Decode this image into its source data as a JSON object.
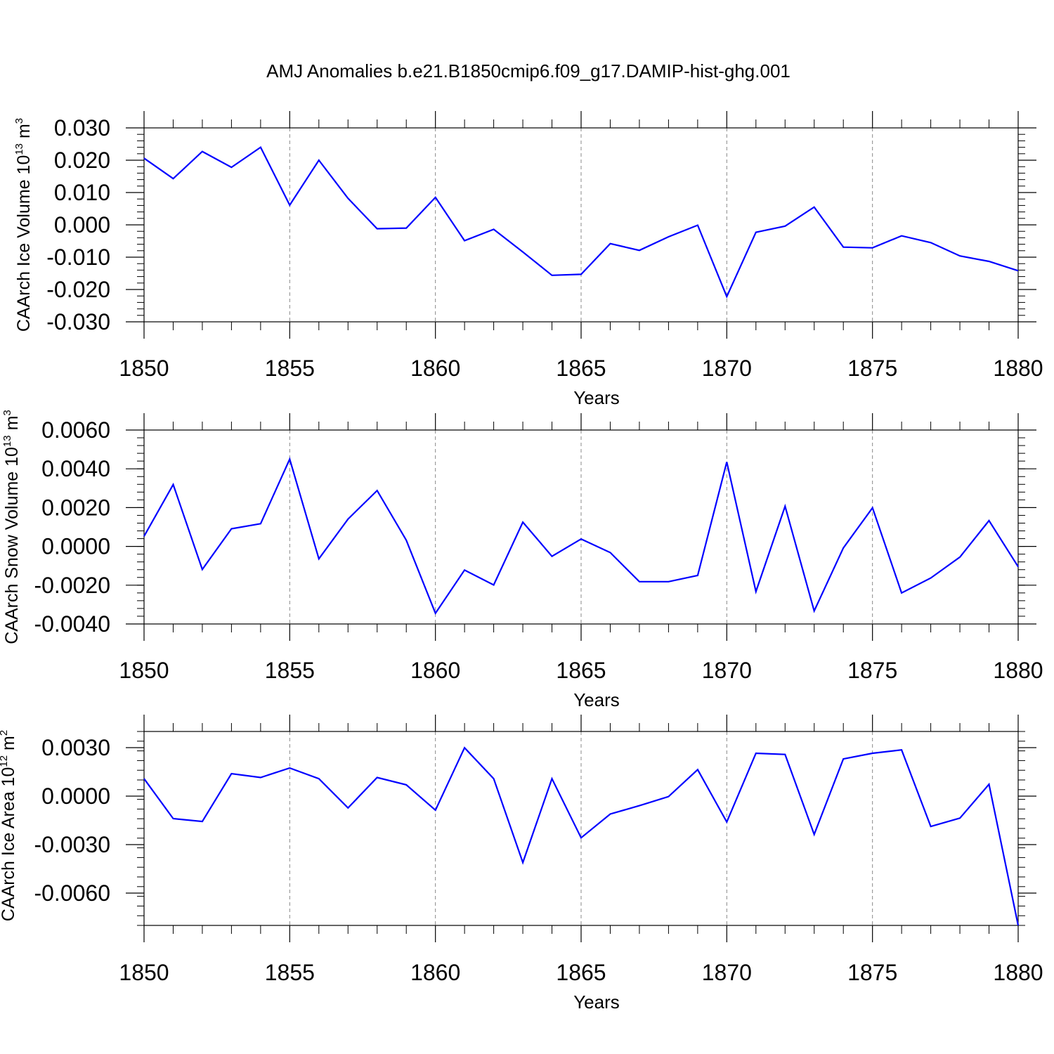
{
  "figure": {
    "title": "AMJ Anomalies b.e21.B1850cmip6.f09_g17.DAMIP-hist-ghg.001"
  },
  "chart_data": [
    {
      "type": "line",
      "xlabel": "Years",
      "ylabel_main": "CAArch Ice Volume 10",
      "ylabel_exp": "13",
      "ylabel_unit": " m",
      "ylabel_unit_exp": "3",
      "xlim": [
        1850,
        1880
      ],
      "ylim": [
        -0.03,
        0.03
      ],
      "xticks": [
        1850,
        1855,
        1860,
        1865,
        1870,
        1875,
        1880
      ],
      "xtick_labels": [
        "1850",
        "1855",
        "1860",
        "1865",
        "1870",
        "1875",
        "1880"
      ],
      "yticks": [
        -0.03,
        -0.02,
        -0.01,
        0.0,
        0.01,
        0.02,
        0.03
      ],
      "ytick_labels": [
        "-0.030",
        "-0.020",
        "-0.010",
        "0.000",
        "0.010",
        "0.020",
        "0.030"
      ],
      "grid": "vertical dashed at major x ticks",
      "line_color": "#0000ff",
      "x": [
        1850,
        1851,
        1852,
        1853,
        1854,
        1855,
        1856,
        1857,
        1858,
        1859,
        1860,
        1861,
        1862,
        1863,
        1864,
        1865,
        1866,
        1867,
        1868,
        1869,
        1870,
        1871,
        1872,
        1873,
        1874,
        1875,
        1876,
        1877,
        1878,
        1879,
        1880
      ],
      "values": [
        0.0206,
        0.0143,
        0.0227,
        0.0178,
        0.024,
        0.0061,
        0.02,
        0.0082,
        -0.0012,
        -0.001,
        0.0085,
        -0.0049,
        -0.0014,
        -0.0084,
        -0.0156,
        -0.0153,
        -0.0058,
        -0.0079,
        -0.0037,
        -0.0001,
        -0.0222,
        -0.0023,
        -0.0004,
        0.0055,
        -0.0069,
        -0.0071,
        -0.0034,
        -0.0055,
        -0.0096,
        -0.0113,
        -0.0142
      ]
    },
    {
      "type": "line",
      "xlabel": "Years",
      "ylabel_main": "CAArch Snow Volume 10",
      "ylabel_exp": "13",
      "ylabel_unit": " m",
      "ylabel_unit_exp": "3",
      "xlim": [
        1850,
        1880
      ],
      "ylim": [
        -0.004,
        0.006
      ],
      "xticks": [
        1850,
        1855,
        1860,
        1865,
        1870,
        1875,
        1880
      ],
      "xtick_labels": [
        "1850",
        "1855",
        "1860",
        "1865",
        "1870",
        "1875",
        "1880"
      ],
      "yticks": [
        -0.004,
        -0.002,
        0.0,
        0.002,
        0.004,
        0.006
      ],
      "ytick_labels": [
        "-0.0040",
        "-0.0020",
        "0.0000",
        "0.0020",
        "0.0040",
        "0.0060"
      ],
      "grid": "vertical dashed at major x ticks",
      "line_color": "#0000ff",
      "x": [
        1850,
        1851,
        1852,
        1853,
        1854,
        1855,
        1856,
        1857,
        1858,
        1859,
        1860,
        1861,
        1862,
        1863,
        1864,
        1865,
        1866,
        1867,
        1868,
        1869,
        1870,
        1871,
        1872,
        1873,
        1874,
        1875,
        1876,
        1877,
        1878,
        1879,
        1880
      ],
      "values": [
        0.00052,
        0.00319,
        -0.00119,
        0.00091,
        0.00117,
        0.0045,
        -0.00064,
        0.00141,
        0.00288,
        0.00032,
        -0.00345,
        -0.00122,
        -0.00199,
        0.00125,
        -0.00051,
        0.00038,
        -0.00032,
        -0.00182,
        -0.00182,
        -0.0015,
        0.00435,
        -0.00233,
        0.00207,
        -0.00333,
        -8e-05,
        0.00199,
        -0.0024,
        -0.00163,
        -0.00055,
        0.00133,
        -0.00105
      ]
    },
    {
      "type": "line",
      "xlabel": "Years",
      "ylabel_main": "CAArch Ice Area 10",
      "ylabel_exp": "12",
      "ylabel_unit": " m",
      "ylabel_unit_exp": "2",
      "xlim": [
        1850,
        1880
      ],
      "ylim": [
        -0.008,
        0.004
      ],
      "xticks": [
        1850,
        1855,
        1860,
        1865,
        1870,
        1875,
        1880
      ],
      "xtick_labels": [
        "1850",
        "1855",
        "1860",
        "1865",
        "1870",
        "1875",
        "1880"
      ],
      "yticks": [
        -0.006,
        -0.003,
        0.0,
        0.003
      ],
      "ytick_labels": [
        "-0.0060",
        "-0.0030",
        "0.0000",
        "0.0030"
      ],
      "grid": "vertical dashed at major x ticks",
      "line_color": "#0000ff",
      "x": [
        1850,
        1851,
        1852,
        1853,
        1854,
        1855,
        1856,
        1857,
        1858,
        1859,
        1860,
        1861,
        1862,
        1863,
        1864,
        1865,
        1866,
        1867,
        1868,
        1869,
        1870,
        1871,
        1872,
        1873,
        1874,
        1875,
        1876,
        1877,
        1878,
        1879,
        1880
      ],
      "values": [
        0.00108,
        -0.00139,
        -0.00157,
        0.00139,
        0.00115,
        0.00174,
        0.00108,
        -0.00073,
        0.00115,
        0.0007,
        -0.00087,
        0.00299,
        0.00108,
        -0.00411,
        0.00108,
        -0.00258,
        -0.00111,
        -0.00059,
        -3e-05,
        0.00164,
        -0.0016,
        0.00265,
        0.00258,
        -0.00237,
        0.0023,
        0.00265,
        0.00286,
        -0.00188,
        -0.00136,
        0.00073,
        -0.008
      ]
    }
  ]
}
